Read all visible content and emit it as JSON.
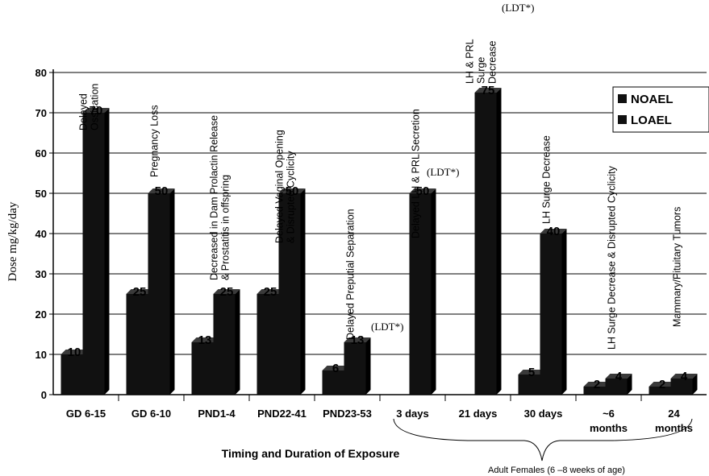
{
  "chart_data": {
    "type": "bar",
    "title": "",
    "xlabel": "Timing and Duration of Exposure",
    "ylabel": "Dose mg/kg/day",
    "ylim": [
      0,
      80
    ],
    "yticks": [
      "0",
      "10",
      "20",
      "30",
      "40",
      "50",
      "60",
      "70",
      "80"
    ],
    "grid": true,
    "legend_position": "top-right",
    "bracket_label": "Adult Females (6 –8 weeks of age)",
    "categories": [
      {
        "label": "GD 6-15",
        "line2": ""
      },
      {
        "label": "GD 6-10",
        "line2": ""
      },
      {
        "label": "PND1-4",
        "line2": ""
      },
      {
        "label": "PND22-41",
        "line2": ""
      },
      {
        "label": "PND23-53",
        "line2": ""
      },
      {
        "label": "3 days",
        "line2": ""
      },
      {
        "label": "21 days",
        "line2": ""
      },
      {
        "label": "30 days",
        "line2": ""
      },
      {
        "label": "~6",
        "line2": "months"
      },
      {
        "label": "24",
        "line2": "months"
      }
    ],
    "series": [
      {
        "name": "NOAEL",
        "color": "#111111",
        "values": [
          10,
          25,
          13,
          25,
          6,
          null,
          null,
          5,
          2,
          2
        ]
      },
      {
        "name": "LOAEL",
        "color": "#111111",
        "values": [
          70,
          50,
          25,
          50,
          13,
          50,
          75,
          40,
          4,
          4
        ]
      }
    ],
    "value_labels": {
      "NOAEL": [
        "10",
        "25",
        "13",
        "25",
        "6",
        "",
        "",
        "5",
        "2",
        "2"
      ],
      "LOAEL": [
        "70",
        "50",
        "25",
        "50",
        "13",
        "50",
        "75",
        "40",
        "4",
        "4"
      ]
    },
    "annotations": [
      {
        "text": "Delayed\nOssication",
        "category": 0
      },
      {
        "text": "Pregnancy Loss",
        "category": 1
      },
      {
        "text": "Decreased in Dam Prolactin Release\n& Prostatitis in offspring",
        "category": 2
      },
      {
        "text": "Delayed Vaginal Opening\n& Disrupted Cyclicity",
        "category": 3
      },
      {
        "text": "Delayed Preputial Separation",
        "category": 4
      },
      {
        "text": "Delayed LH & PRL Secretion",
        "category": 5
      },
      {
        "text": "LH & PRL\nSurge\nDecrease",
        "category": 6
      },
      {
        "text": "LH Surge Decrease",
        "category": 7
      },
      {
        "text": "LH Surge Decrease & Disrupted Cyclicity",
        "category": 8
      },
      {
        "text": "Mammary/Pituitary Tumors",
        "category": 9
      }
    ],
    "ldt_notes": [
      {
        "text": "(LDT*)",
        "category": 4
      },
      {
        "text": "(LDT*)",
        "category": 5
      },
      {
        "text": "(LDT*)",
        "category": 6
      }
    ]
  }
}
